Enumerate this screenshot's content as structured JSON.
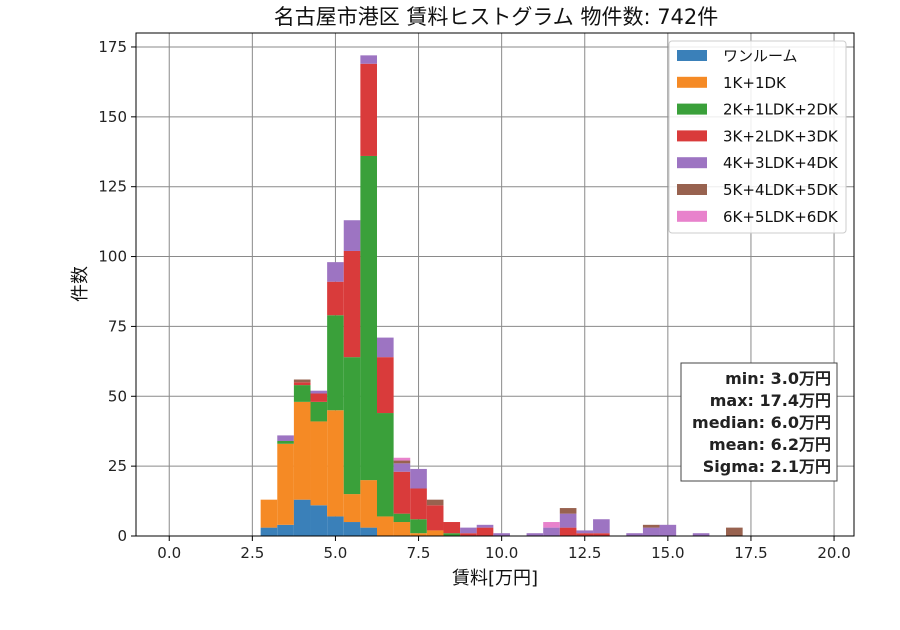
{
  "chart_data": {
    "type": "bar",
    "stacked": true,
    "title": "名古屋市港区 賃料ヒストグラム 物件数: 742件",
    "xlabel": "賃料[万円]",
    "ylabel": "件数",
    "xlim": [
      -1.0,
      20.6
    ],
    "ylim": [
      0,
      180
    ],
    "xticks": [
      "0.0",
      "2.5",
      "5.0",
      "7.5",
      "10.0",
      "12.5",
      "15.0",
      "17.5",
      "20.0"
    ],
    "yticks": [
      "0",
      "25",
      "50",
      "75",
      "100",
      "125",
      "150",
      "175"
    ],
    "grid": true,
    "legend_position": "top-right",
    "x": [
      3.0,
      3.5,
      4.0,
      4.5,
      5.0,
      5.5,
      6.0,
      6.5,
      7.0,
      7.5,
      8.0,
      8.5,
      9.0,
      9.5,
      10.0,
      11.0,
      11.5,
      12.0,
      12.5,
      13.0,
      14.0,
      14.5,
      15.0,
      16.0,
      17.0
    ],
    "bin_width": 0.5,
    "series": [
      {
        "name": "ワンルーム",
        "color": "#3a80b9",
        "values": [
          3,
          4,
          13,
          11,
          7,
          5,
          3,
          0,
          0,
          0,
          0,
          0,
          0,
          0,
          0,
          0,
          0,
          0,
          0,
          0,
          0,
          0,
          0,
          0,
          0
        ]
      },
      {
        "name": "1K+1DK",
        "color": "#f58a25",
        "values": [
          10,
          29,
          35,
          30,
          38,
          10,
          17,
          7,
          5,
          1,
          2,
          0,
          0,
          0,
          0,
          0,
          0,
          0,
          0,
          0,
          0,
          0,
          0,
          0,
          0
        ]
      },
      {
        "name": "2K+1LDK+2DK",
        "color": "#3aa03a",
        "values": [
          0,
          1,
          6,
          7,
          34,
          49,
          116,
          37,
          3,
          5,
          0,
          1,
          0,
          0,
          0,
          0,
          0,
          0,
          0,
          0,
          0,
          0,
          0,
          0,
          0
        ]
      },
      {
        "name": "3K+2LDK+3DK",
        "color": "#d93b3b",
        "values": [
          0,
          0,
          1,
          3,
          12,
          38,
          33,
          20,
          15,
          11,
          9,
          4,
          1,
          3,
          0,
          0,
          0,
          3,
          1,
          1,
          0,
          0,
          0,
          0,
          0
        ]
      },
      {
        "name": "4K+3LDK+4DK",
        "color": "#9d74c2",
        "values": [
          0,
          2,
          0,
          1,
          7,
          11,
          3,
          7,
          3,
          7,
          0,
          0,
          2,
          1,
          1,
          1,
          3,
          5,
          1,
          5,
          1,
          3,
          4,
          1,
          0
        ]
      },
      {
        "name": "5K+4LDK+5DK",
        "color": "#98624f",
        "values": [
          0,
          0,
          1,
          0,
          0,
          0,
          0,
          0,
          1,
          0,
          2,
          0,
          0,
          0,
          0,
          0,
          0,
          2,
          0,
          0,
          0,
          1,
          0,
          0,
          3
        ]
      },
      {
        "name": "6K+5LDK+6DK",
        "color": "#e882cc",
        "values": [
          0,
          0,
          0,
          0,
          0,
          0,
          0,
          0,
          1,
          0,
          0,
          0,
          0,
          0,
          0,
          0,
          2,
          0,
          0,
          0,
          0,
          0,
          0,
          0,
          0
        ]
      }
    ],
    "stats": [
      "min: 3.0万円",
      "max: 17.4万円",
      "median: 6.0万円",
      "mean: 6.2万円",
      "Sigma: 2.1万円"
    ]
  }
}
